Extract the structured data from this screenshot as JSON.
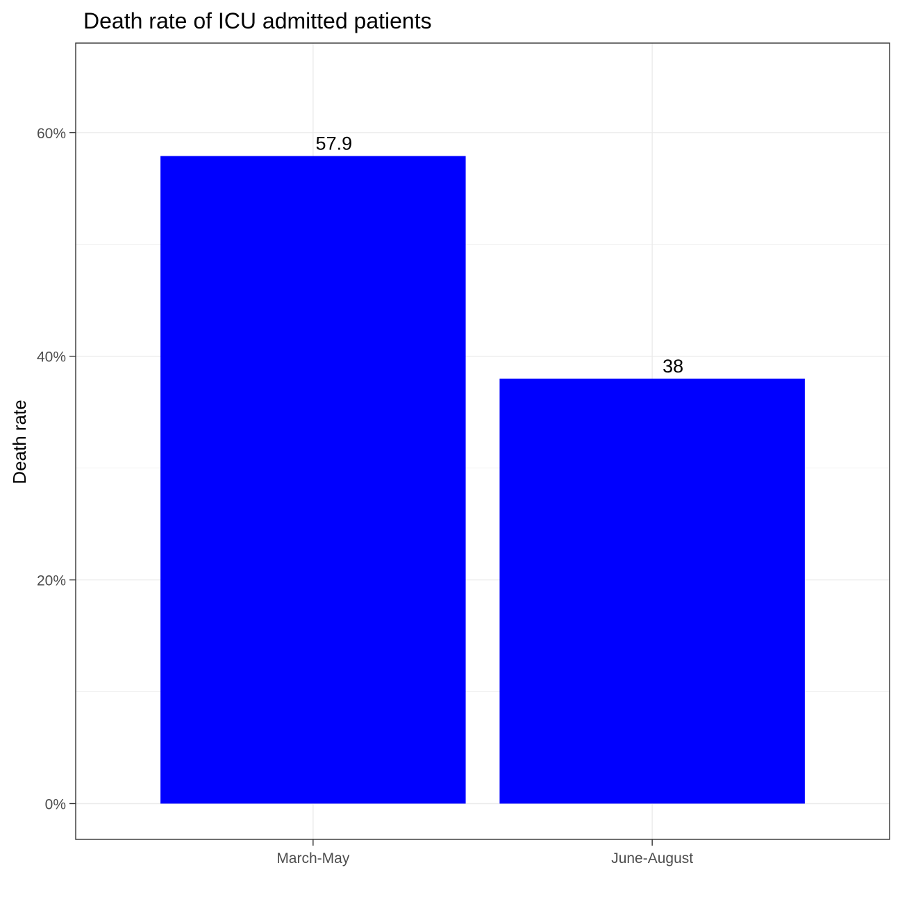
{
  "chart_data": {
    "type": "bar",
    "title": "Death rate of ICU admitted patients",
    "xlabel": "",
    "ylabel": "Death rate",
    "categories": [
      "March-May",
      "June-August"
    ],
    "values": [
      57.9,
      38
    ],
    "value_labels": [
      "57.9",
      "38"
    ],
    "y_ticks": [
      0,
      20,
      40,
      60
    ],
    "y_tick_labels": [
      "0%",
      "20%",
      "40%",
      "60%"
    ],
    "y_minor_ticks": [
      10,
      30,
      50
    ],
    "ylim": [
      -3.2,
      68
    ],
    "grid": true,
    "legend": "none",
    "bar_color": "#0000FF"
  }
}
